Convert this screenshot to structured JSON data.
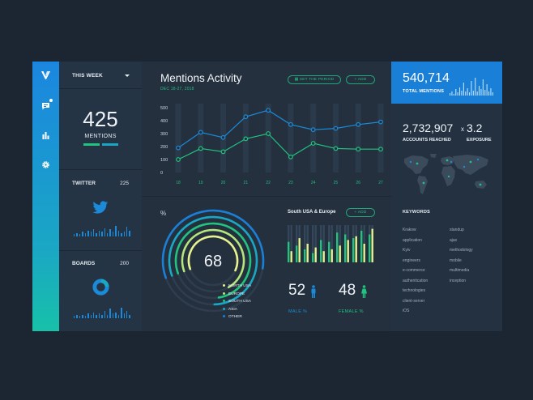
{
  "nav": {
    "items": [
      "chat-icon",
      "bar-chart-icon",
      "gear-icon"
    ],
    "accent": "#1b86e0"
  },
  "sidebar": {
    "period": "THIS WEEK",
    "mentions": {
      "value": "425",
      "label": "MENTIONS"
    },
    "twitter": {
      "label": "TWITTER",
      "value": "225",
      "bars": [
        2,
        3,
        2,
        4,
        3,
        5,
        4,
        6,
        3,
        5,
        4,
        7,
        3,
        6,
        4,
        9,
        5,
        3,
        4,
        8,
        5
      ]
    },
    "boards": {
      "label": "BOARDS",
      "value": "200",
      "bars": [
        2,
        3,
        2,
        3,
        2,
        4,
        3,
        5,
        3,
        4,
        3,
        6,
        3,
        8,
        4,
        5,
        3,
        9,
        4,
        6,
        3
      ]
    }
  },
  "activity": {
    "title": "Mentions Activity",
    "date": "DEC 18-27, 2018",
    "set_period": "SET THE PERIOD",
    "add": "ADD"
  },
  "chart_data": {
    "type": "line",
    "x": [
      "18",
      "19",
      "20",
      "21",
      "22",
      "23",
      "24",
      "25",
      "26",
      "27"
    ],
    "ylim": [
      0,
      500
    ],
    "yticks": [
      "500",
      "400",
      "300",
      "200",
      "100",
      "0"
    ],
    "series": [
      {
        "values": [
          190,
          310,
          270,
          430,
          480,
          370,
          330,
          340,
          370,
          390
        ],
        "color": "#1b8ad8"
      },
      {
        "values": [
          100,
          185,
          160,
          260,
          300,
          120,
          225,
          185,
          180,
          180
        ],
        "color": "#22c27f"
      }
    ]
  },
  "regions": {
    "percent_symbol": "%",
    "center": "68",
    "legend": [
      "NORTH USA",
      "EUROPE",
      "SOUTH USA",
      "ASIA",
      "OTHER"
    ],
    "ring_colors": [
      "#e6f28d",
      "#b4e67b",
      "#22c27f",
      "#1aa7c4",
      "#1b7fd6"
    ],
    "ring_levels": [
      0.62,
      0.72,
      0.78,
      0.8,
      0.58
    ]
  },
  "demographics": {
    "title": "South USA & Europe",
    "add": "ADD",
    "male": {
      "value": "52",
      "label": "MALE %",
      "color": "#1b8ad8"
    },
    "female": {
      "value": "48",
      "label": "FEMALE %",
      "color": "#22c27f"
    },
    "bars": [
      0.55,
      0.3,
      0.45,
      0.65,
      0.35,
      0.5,
      0.25,
      0.4,
      0.6,
      0.3,
      0.55,
      0.35,
      0.8,
      0.45,
      0.75,
      0.6,
      0.65,
      0.7,
      0.85,
      0.5,
      0.75,
      0.9
    ]
  },
  "summary": {
    "total": {
      "value": "540,714",
      "label": "TOTAL MENTIONS",
      "bars": [
        3,
        5,
        2,
        8,
        4,
        10,
        6,
        16,
        5,
        9,
        4,
        18,
        6,
        22,
        5,
        12,
        8,
        20,
        7,
        14,
        5,
        9,
        4
      ]
    },
    "accounts": {
      "value": "2,732,907",
      "label": "ACCOUNTS REACHED"
    },
    "exposure": {
      "x": "x",
      "value": "3.2",
      "label": "EXPOSURE"
    }
  },
  "keywords": {
    "title": "KEYWORDS",
    "left": [
      "Krakow",
      "application",
      "Kyiv",
      "engineers",
      "e-commerce",
      "authentication",
      "technologies",
      "client-server",
      "iOS"
    ],
    "right": [
      "standup",
      "ajax",
      "methodology",
      "mobile",
      "multimedia",
      "inception"
    ]
  }
}
